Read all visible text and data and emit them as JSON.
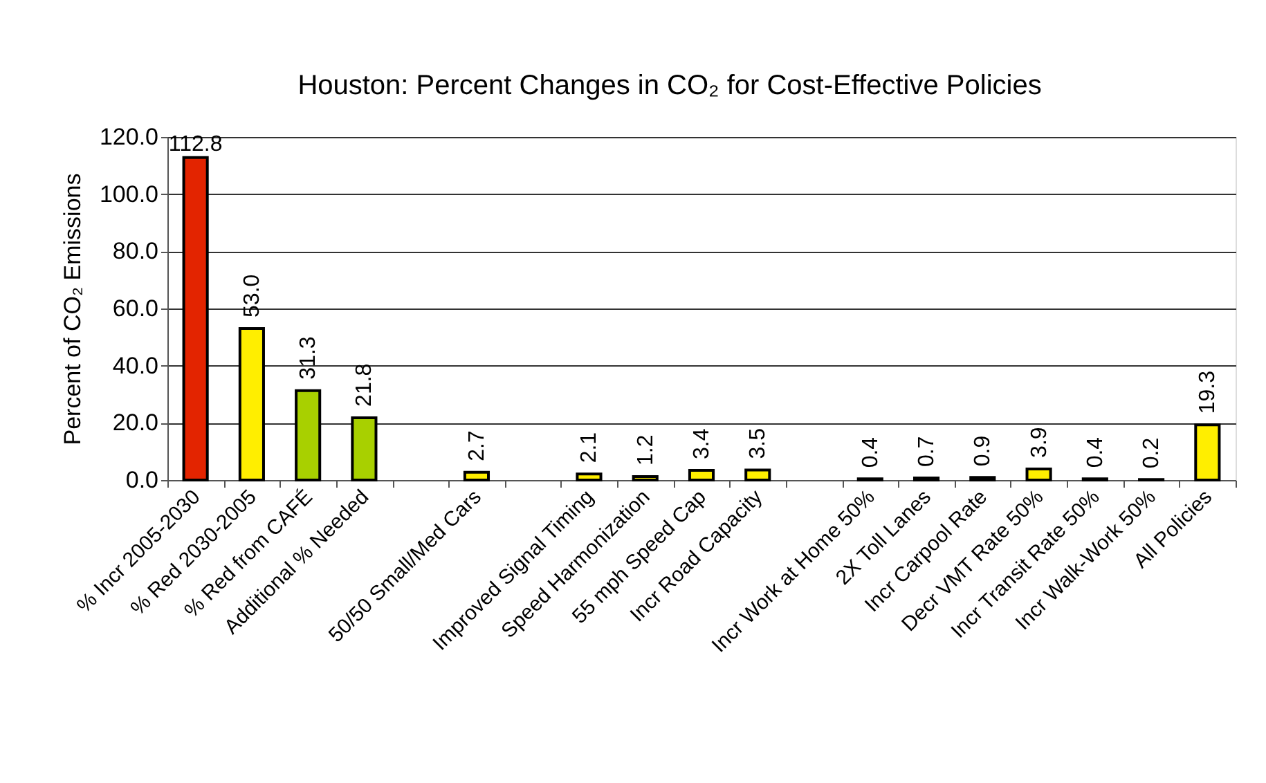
{
  "chart_data": {
    "type": "bar",
    "title": "Houston: Percent Changes in CO₂ for Cost-Effective Policies",
    "ylabel": "Percent of CO₂ Emissions",
    "categories": [
      "% Incr 2005-2030",
      "% Red 2030-2005",
      "% Red from CAFÉ",
      "Additional % Needed",
      null,
      "50/50  Small/Med Cars",
      null,
      "Improved Signal Timing",
      "Speed Harmonization",
      "55 mph Speed Cap",
      "Incr Road Capacity",
      null,
      "Incr Work at Home 50%",
      "2X Toll Lanes",
      "Incr Carpool Rate",
      "Decr VMT Rate 50%",
      "Incr Transit Rate 50%",
      "Incr Walk-Work 50%",
      "All Policies"
    ],
    "values": [
      112.8,
      53.0,
      31.3,
      21.8,
      null,
      2.7,
      null,
      2.1,
      1.2,
      3.4,
      3.5,
      null,
      0.4,
      0.7,
      0.9,
      3.9,
      0.4,
      0.2,
      19.3
    ],
    "value_labels": [
      "112.8",
      "53.0",
      "31.3",
      "21.8",
      null,
      "2.7",
      null,
      "2.1",
      "1.2",
      "3.4",
      "3.5",
      null,
      "0.4",
      "0.7",
      "0.9",
      "3.9",
      "0.4",
      "0.2",
      "19.3"
    ],
    "colors": [
      "#e32400",
      "#ffee00",
      "#a8d000",
      "#a8d000",
      null,
      "#ffee00",
      null,
      "#ffee00",
      "#ffee00",
      "#ffee00",
      "#ffee00",
      null,
      "#ffee00",
      "#ffee00",
      "#ffee00",
      "#ffee00",
      "#ffee00",
      "#ffee00",
      "#ffee00"
    ],
    "ylim": [
      0,
      120
    ],
    "yticks": [
      {
        "value": 0,
        "label": "0.0"
      },
      {
        "value": 20,
        "label": "20.0"
      },
      {
        "value": 40,
        "label": "40.0"
      },
      {
        "value": 60,
        "label": "60.0"
      },
      {
        "value": 80,
        "label": "80.0"
      },
      {
        "value": 100,
        "label": "100.0"
      },
      {
        "value": 120,
        "label": "120.0"
      }
    ],
    "grid": "y"
  }
}
